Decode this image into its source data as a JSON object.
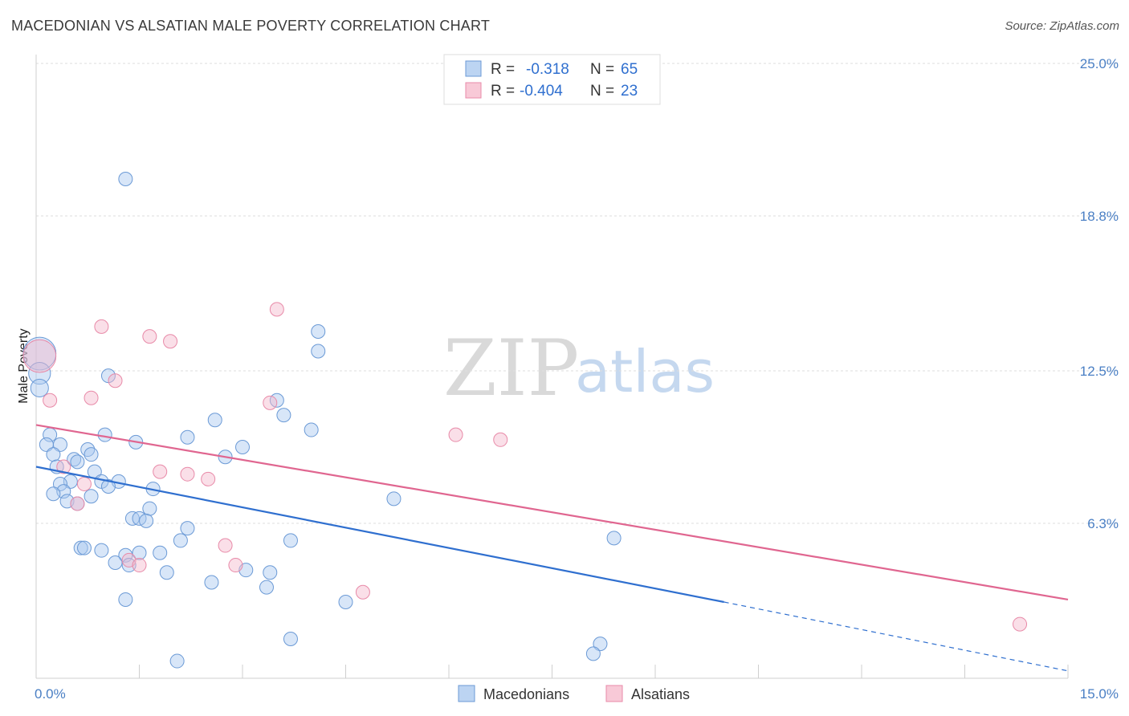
{
  "title": "MACEDONIAN VS ALSATIAN MALE POVERTY CORRELATION CHART",
  "source": "Source: ZipAtlas.com",
  "watermark": {
    "zip": "ZIP",
    "atlas": "atlas"
  },
  "legend": {
    "rows": [
      {
        "r_label": "R =",
        "r_value": "-0.318",
        "n_label": "N =",
        "n_value": "65"
      },
      {
        "r_label": "R =",
        "r_value": "-0.404",
        "n_label": "N =",
        "n_value": "23"
      }
    ]
  },
  "bottom_legend": [
    "Macedonians",
    "Alsatians"
  ],
  "colors": {
    "blue_fill": "#a9c7ef",
    "blue_stroke": "#6b9ad6",
    "blue_line": "#2f6fcf",
    "pink_fill": "#f5b8cb",
    "pink_stroke": "#e88aa8",
    "pink_line": "#e06690",
    "axis_label": "#4a7fc4"
  },
  "chart_data": {
    "type": "scatter",
    "title": "MACEDONIAN VS ALSATIAN MALE POVERTY CORRELATION CHART",
    "xlabel": "",
    "ylabel": "Male Poverty",
    "xlim": [
      0,
      15
    ],
    "ylim": [
      0,
      25.0
    ],
    "x_tick_labels": [
      "0.0%",
      "15.0%"
    ],
    "y_ticks": [
      {
        "value": 25.0,
        "label": "25.0%"
      },
      {
        "value": 18.8,
        "label": "18.8%"
      },
      {
        "value": 12.5,
        "label": "12.5%"
      },
      {
        "value": 6.3,
        "label": "6.3%"
      }
    ],
    "series": [
      {
        "name": "Macedonians",
        "r": -0.318,
        "n": 65,
        "trend": {
          "x0": 0,
          "y0": 8.6,
          "x1": 10.0,
          "y1": 3.1,
          "dashed_to_x": 15,
          "dashed_to_y": 0.3
        },
        "points": [
          [
            0.05,
            13.2,
            2.4
          ],
          [
            0.05,
            12.4,
            1.6
          ],
          [
            0.05,
            11.8,
            1.3
          ],
          [
            1.3,
            20.3,
            1
          ],
          [
            4.1,
            14.1,
            1
          ],
          [
            4.1,
            13.3,
            1
          ],
          [
            1.05,
            12.3,
            1
          ],
          [
            3.5,
            11.3,
            1
          ],
          [
            3.6,
            10.7,
            1
          ],
          [
            2.6,
            10.5,
            1
          ],
          [
            4.0,
            10.1,
            1
          ],
          [
            0.2,
            9.9,
            1
          ],
          [
            0.35,
            9.5,
            1
          ],
          [
            0.15,
            9.5,
            1
          ],
          [
            1.0,
            9.9,
            1
          ],
          [
            2.2,
            9.8,
            1
          ],
          [
            1.45,
            9.6,
            1
          ],
          [
            3.0,
            9.4,
            1
          ],
          [
            0.75,
            9.3,
            1
          ],
          [
            0.8,
            9.1,
            1
          ],
          [
            0.25,
            9.1,
            1
          ],
          [
            0.55,
            8.9,
            1
          ],
          [
            0.6,
            8.8,
            1
          ],
          [
            2.75,
            9.0,
            1
          ],
          [
            0.85,
            8.4,
            1
          ],
          [
            0.95,
            8.0,
            1
          ],
          [
            1.2,
            8.0,
            1
          ],
          [
            0.5,
            8.0,
            1
          ],
          [
            0.35,
            7.9,
            1
          ],
          [
            1.05,
            7.8,
            1
          ],
          [
            1.7,
            7.7,
            1
          ],
          [
            0.4,
            7.6,
            1
          ],
          [
            0.25,
            7.5,
            1
          ],
          [
            0.8,
            7.4,
            1
          ],
          [
            0.45,
            7.2,
            1
          ],
          [
            0.6,
            7.1,
            1
          ],
          [
            5.2,
            7.3,
            1
          ],
          [
            1.65,
            6.9,
            1
          ],
          [
            1.4,
            6.5,
            1
          ],
          [
            1.5,
            6.5,
            1
          ],
          [
            1.6,
            6.4,
            1
          ],
          [
            2.2,
            6.1,
            1
          ],
          [
            8.4,
            5.7,
            1
          ],
          [
            3.7,
            5.6,
            1
          ],
          [
            2.1,
            5.6,
            1
          ],
          [
            0.65,
            5.3,
            1
          ],
          [
            0.7,
            5.3,
            1
          ],
          [
            0.95,
            5.2,
            1
          ],
          [
            1.5,
            5.1,
            1
          ],
          [
            1.8,
            5.1,
            1
          ],
          [
            1.3,
            5.0,
            1
          ],
          [
            1.15,
            4.7,
            1
          ],
          [
            1.35,
            4.6,
            1
          ],
          [
            3.05,
            4.4,
            1
          ],
          [
            1.9,
            4.3,
            1
          ],
          [
            3.4,
            4.3,
            1
          ],
          [
            2.55,
            3.9,
            1
          ],
          [
            3.35,
            3.7,
            1
          ],
          [
            1.3,
            3.2,
            1
          ],
          [
            4.5,
            3.1,
            1
          ],
          [
            3.7,
            1.6,
            1
          ],
          [
            8.2,
            1.4,
            1
          ],
          [
            8.1,
            1.0,
            1
          ],
          [
            2.05,
            0.7,
            1
          ],
          [
            0.3,
            8.6,
            1
          ]
        ]
      },
      {
        "name": "Alsatians",
        "r": -0.404,
        "n": 23,
        "trend": {
          "x0": 0,
          "y0": 10.3,
          "x1": 15,
          "y1": 3.2
        },
        "points": [
          [
            0.05,
            13.1,
            2.4
          ],
          [
            3.5,
            15.0,
            1
          ],
          [
            0.95,
            14.3,
            1
          ],
          [
            1.65,
            13.9,
            1
          ],
          [
            1.95,
            13.7,
            1
          ],
          [
            1.15,
            12.1,
            1
          ],
          [
            0.2,
            11.3,
            1
          ],
          [
            0.8,
            11.4,
            1
          ],
          [
            3.4,
            11.2,
            1
          ],
          [
            6.1,
            9.9,
            1
          ],
          [
            6.75,
            9.7,
            1
          ],
          [
            0.4,
            8.6,
            1
          ],
          [
            1.8,
            8.4,
            1
          ],
          [
            2.2,
            8.3,
            1
          ],
          [
            2.5,
            8.1,
            1
          ],
          [
            0.7,
            7.9,
            1
          ],
          [
            0.6,
            7.1,
            1
          ],
          [
            2.75,
            5.4,
            1
          ],
          [
            1.35,
            4.8,
            1
          ],
          [
            1.5,
            4.6,
            1
          ],
          [
            2.9,
            4.6,
            1
          ],
          [
            4.75,
            3.5,
            1
          ],
          [
            14.3,
            2.2,
            1
          ]
        ]
      }
    ]
  }
}
